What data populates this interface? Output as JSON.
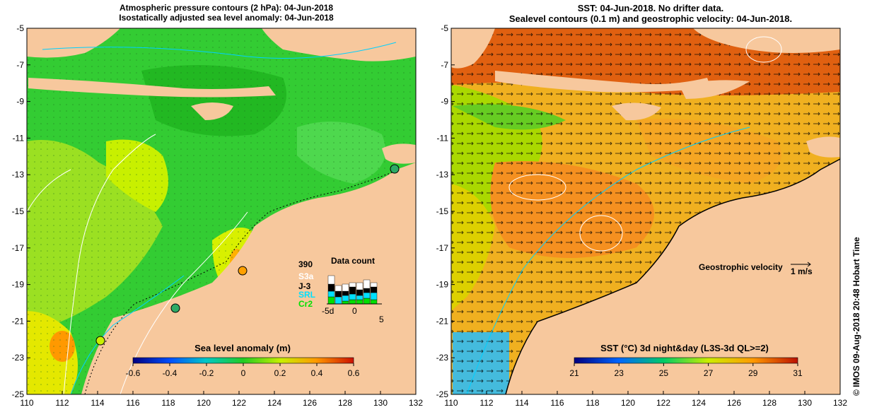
{
  "left_panel": {
    "title_line1": "Atmospheric pressure contours (2 hPa): 04-Jun-2018",
    "title_line2": "Isostatically adjusted sea level anomaly: 04-Jun-2018",
    "colorbar": {
      "label": "Sea level anomaly (m)",
      "ticks": [
        "-0.6",
        "-0.4",
        "-0.2",
        "0",
        "0.2",
        "0.4",
        "0.6"
      ]
    },
    "data_count": {
      "title": "Data count",
      "max": "390",
      "satellites": [
        {
          "name": "S3a",
          "color": "#ffffff"
        },
        {
          "name": "J-3",
          "color": "#000000"
        },
        {
          "name": "SRL",
          "color": "#00e0ff"
        },
        {
          "name": "Cr2",
          "color": "#00e000"
        }
      ],
      "axis_labels": [
        "-5d",
        "0",
        "5"
      ]
    }
  },
  "right_panel": {
    "title_line1": "SST: 04-Jun-2018. No drifter data.",
    "title_line2": "Sealevel contours (0.1 m) and geostrophic velocity: 04-Jun-2018.",
    "velocity_label": "Geostrophic velocity",
    "velocity_scale": "1 m/s",
    "colorbar": {
      "label": "SST (°C) 3d night&day (L3S-3d QL>=2)",
      "ticks": [
        "21",
        "23",
        "25",
        "27",
        "29",
        "31"
      ]
    }
  },
  "axes": {
    "x_ticks": [
      "110",
      "112",
      "114",
      "116",
      "118",
      "120",
      "122",
      "124",
      "126",
      "128",
      "130",
      "132"
    ],
    "y_ticks": [
      "-5",
      "-7",
      "-9",
      "-11",
      "-13",
      "-15",
      "-17",
      "-19",
      "-21",
      "-23",
      "-25"
    ]
  },
  "credit": "© IMOS 09-Aug-2018 20:48 Hobart Time",
  "colors": {
    "land": "#f7c89d",
    "sea_green": "#33cc33",
    "sst_orange": "#f5a623"
  }
}
